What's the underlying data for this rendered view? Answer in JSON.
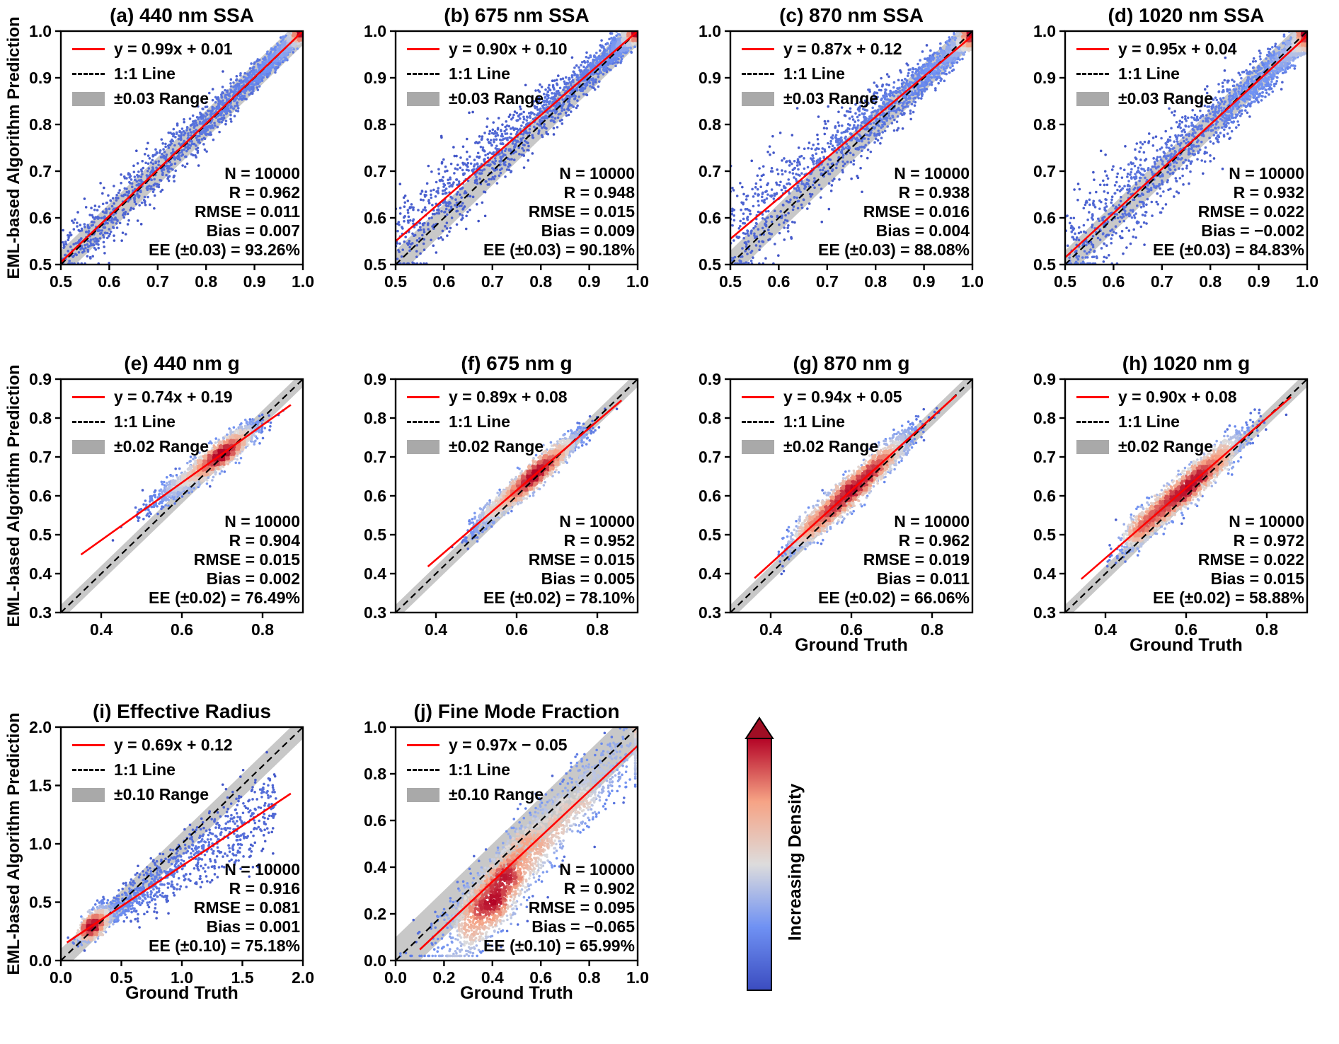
{
  "figure": {
    "y_axis_label": "EML-based Algorithm Prediction",
    "x_axis_label": "Ground Truth",
    "colors": {
      "fit_line": "#ff0000",
      "identity_line": "#000000",
      "band_fill": "#c8c8c8",
      "legend_band_swatch": "#a9a9a9",
      "spine": "#000000",
      "text": "#000000"
    },
    "colorbar": {
      "label": "Increasing Density",
      "colors": [
        "#3b4cc0",
        "#6f91f3",
        "#dddcdc",
        "#f6a385",
        "#b40426"
      ],
      "arrow_color": "#a00e24"
    }
  },
  "chart_data": {
    "type": "scatter",
    "description": "Density scatter plots of EML-based algorithm predictions versus ground truth for aerosol properties; point color encodes local point density (blue = low, red = high).",
    "panels": [
      {
        "id": "a",
        "title": "(a) 440 nm SSA",
        "legend": {
          "fit_label": "y = 0.99x + 0.01",
          "identity_label": "1:1 Line",
          "band_label": "±0.03 Range"
        },
        "stats": {
          "n": "N = 10000",
          "r": "R = 0.962",
          "rmse": "RMSE = 0.011",
          "bias": "Bias = 0.007",
          "ee": "EE (±0.03) = 93.26%"
        },
        "axis": {
          "xmin": 0.5,
          "xmax": 1.0,
          "ymin": 0.5,
          "ymax": 1.0,
          "xticks": [
            0.5,
            0.6,
            0.7,
            0.8,
            0.9,
            1.0
          ],
          "yticks": [
            0.5,
            0.6,
            0.7,
            0.8,
            0.9,
            1.0
          ],
          "decimals": 1
        },
        "fit": {
          "slope": 0.99,
          "intercept": 0.01,
          "range": [
            0.5,
            1.0
          ]
        },
        "band": 0.03,
        "show_xlabel": false,
        "show_ylabel": true,
        "scatter": {
          "seed": 101,
          "n": 2200,
          "components": [
            {
              "w": 1.0,
              "kind": "pow",
              "base": 1.0,
              "scale": -0.5,
              "p": 2.5
            }
          ],
          "noise": {
            "n0": 0.008,
            "n1": 0.07,
            "ref": 1.0
          },
          "clip_x": [
            0.5,
            1.0
          ],
          "clip_y": [
            0.502,
            0.999
          ]
        }
      },
      {
        "id": "b",
        "title": "(b) 675 nm SSA",
        "legend": {
          "fit_label": "y = 0.90x + 0.10",
          "identity_label": "1:1 Line",
          "band_label": "±0.03 Range"
        },
        "stats": {
          "n": "N = 10000",
          "r": "R = 0.948",
          "rmse": "RMSE = 0.015",
          "bias": "Bias = 0.009",
          "ee": "EE (±0.03) = 90.18%"
        },
        "axis": {
          "xmin": 0.5,
          "xmax": 1.0,
          "ymin": 0.5,
          "ymax": 1.0,
          "xticks": [
            0.5,
            0.6,
            0.7,
            0.8,
            0.9,
            1.0
          ],
          "yticks": [
            0.5,
            0.6,
            0.7,
            0.8,
            0.9,
            1.0
          ],
          "decimals": 1
        },
        "fit": {
          "slope": 0.9,
          "intercept": 0.1,
          "range": [
            0.5,
            1.0
          ]
        },
        "band": 0.03,
        "show_xlabel": false,
        "show_ylabel": false,
        "scatter": {
          "seed": 202,
          "n": 2200,
          "components": [
            {
              "w": 1.0,
              "kind": "pow",
              "base": 1.0,
              "scale": -0.5,
              "p": 2.5
            }
          ],
          "noise": {
            "n0": 0.01,
            "n1": 0.09,
            "ref": 1.0
          },
          "clip_x": [
            0.5,
            1.0
          ],
          "clip_y": [
            0.502,
            0.999
          ]
        }
      },
      {
        "id": "c",
        "title": "(c) 870 nm SSA",
        "legend": {
          "fit_label": "y = 0.87x + 0.12",
          "identity_label": "1:1 Line",
          "band_label": "±0.03 Range"
        },
        "stats": {
          "n": "N = 10000",
          "r": "R = 0.938",
          "rmse": "RMSE = 0.016",
          "bias": "Bias = 0.004",
          "ee": "EE (±0.03) = 88.08%"
        },
        "axis": {
          "xmin": 0.5,
          "xmax": 1.0,
          "ymin": 0.5,
          "ymax": 1.0,
          "xticks": [
            0.5,
            0.6,
            0.7,
            0.8,
            0.9,
            1.0
          ],
          "yticks": [
            0.5,
            0.6,
            0.7,
            0.8,
            0.9,
            1.0
          ],
          "decimals": 1
        },
        "fit": {
          "slope": 0.87,
          "intercept": 0.12,
          "range": [
            0.5,
            1.0
          ]
        },
        "band": 0.03,
        "show_xlabel": false,
        "show_ylabel": false,
        "scatter": {
          "seed": 303,
          "n": 2200,
          "components": [
            {
              "w": 1.0,
              "kind": "pow",
              "base": 1.0,
              "scale": -0.5,
              "p": 2.4
            }
          ],
          "noise": {
            "n0": 0.011,
            "n1": 0.1,
            "ref": 1.0
          },
          "clip_x": [
            0.5,
            1.0
          ],
          "clip_y": [
            0.502,
            0.999
          ]
        }
      },
      {
        "id": "d",
        "title": "(d) 1020 nm SSA",
        "legend": {
          "fit_label": "y = 0.95x + 0.04",
          "identity_label": "1:1 Line",
          "band_label": "±0.03 Range"
        },
        "stats": {
          "n": "N = 10000",
          "r": "R = 0.932",
          "rmse": "RMSE = 0.022",
          "bias": "Bias = −0.002",
          "ee": "EE (±0.03) = 84.83%"
        },
        "axis": {
          "xmin": 0.5,
          "xmax": 1.0,
          "ymin": 0.5,
          "ymax": 1.0,
          "xticks": [
            0.5,
            0.6,
            0.7,
            0.8,
            0.9,
            1.0
          ],
          "yticks": [
            0.5,
            0.6,
            0.7,
            0.8,
            0.9,
            1.0
          ],
          "decimals": 1
        },
        "fit": {
          "slope": 0.95,
          "intercept": 0.04,
          "range": [
            0.5,
            1.0
          ]
        },
        "band": 0.03,
        "show_xlabel": false,
        "show_ylabel": false,
        "scatter": {
          "seed": 404,
          "n": 2200,
          "components": [
            {
              "w": 1.0,
              "kind": "pow",
              "base": 1.0,
              "scale": -0.5,
              "p": 2.2
            }
          ],
          "noise": {
            "n0": 0.014,
            "n1": 0.1,
            "ref": 1.0
          },
          "clip_x": [
            0.5,
            1.0
          ],
          "clip_y": [
            0.502,
            0.999
          ]
        }
      },
      {
        "id": "e",
        "title": "(e) 440 nm g",
        "legend": {
          "fit_label": "y = 0.74x + 0.19",
          "identity_label": "1:1 Line",
          "band_label": "±0.02 Range"
        },
        "stats": {
          "n": "N = 10000",
          "r": "R = 0.904",
          "rmse": "RMSE = 0.015",
          "bias": "Bias = 0.002",
          "ee": "EE (±0.02) = 76.49%"
        },
        "axis": {
          "xmin": 0.3,
          "xmax": 0.9,
          "ymin": 0.3,
          "ymax": 0.9,
          "xticks": [
            0.4,
            0.6,
            0.8
          ],
          "yticks": [
            0.3,
            0.4,
            0.5,
            0.6,
            0.7,
            0.8,
            0.9
          ],
          "decimals": 1
        },
        "fit": {
          "slope": 0.74,
          "intercept": 0.19,
          "range": [
            0.35,
            0.87
          ]
        },
        "band": 0.02,
        "show_xlabel": false,
        "show_ylabel": true,
        "scatter": {
          "seed": 505,
          "n": 2500,
          "components": [
            {
              "w": 0.78,
              "kind": "gauss",
              "mean": 0.7,
              "sd": 0.042
            },
            {
              "w": 0.22,
              "kind": "gauss",
              "mean": 0.615,
              "sd": 0.055
            }
          ],
          "noise": {
            "n0": 0.016,
            "n1": 0.0,
            "ref": 0.0
          },
          "clip_x": [
            0.42,
            0.875
          ],
          "clip_y": [
            0.31,
            0.89
          ]
        }
      },
      {
        "id": "f",
        "title": "(f) 675 nm g",
        "legend": {
          "fit_label": "y = 0.89x + 0.08",
          "identity_label": "1:1 Line",
          "band_label": "±0.02 Range"
        },
        "stats": {
          "n": "N = 10000",
          "r": "R = 0.952",
          "rmse": "RMSE = 0.015",
          "bias": "Bias = 0.005",
          "ee": "EE (±0.02) = 78.10%"
        },
        "axis": {
          "xmin": 0.3,
          "xmax": 0.9,
          "ymin": 0.3,
          "ymax": 0.9,
          "xticks": [
            0.4,
            0.6,
            0.8
          ],
          "yticks": [
            0.3,
            0.4,
            0.5,
            0.6,
            0.7,
            0.8,
            0.9
          ],
          "decimals": 1
        },
        "fit": {
          "slope": 0.89,
          "intercept": 0.08,
          "range": [
            0.38,
            0.86
          ]
        },
        "band": 0.02,
        "show_xlabel": false,
        "show_ylabel": false,
        "scatter": {
          "seed": 606,
          "n": 2500,
          "components": [
            {
              "w": 0.7,
              "kind": "gauss",
              "mean": 0.66,
              "sd": 0.048
            },
            {
              "w": 0.3,
              "kind": "gauss",
              "mean": 0.575,
              "sd": 0.05
            }
          ],
          "noise": {
            "n0": 0.016,
            "n1": 0.0,
            "ref": 0.0
          },
          "clip_x": [
            0.44,
            0.875
          ],
          "clip_y": [
            0.31,
            0.89
          ]
        }
      },
      {
        "id": "g",
        "title": "(g) 870 nm g",
        "legend": {
          "fit_label": "y = 0.94x + 0.05",
          "identity_label": "1:1 Line",
          "band_label": "±0.02 Range"
        },
        "stats": {
          "n": "N = 10000",
          "r": "R = 0.962",
          "rmse": "RMSE = 0.019",
          "bias": "Bias = 0.011",
          "ee": "EE (±0.02) = 66.06%"
        },
        "axis": {
          "xmin": 0.3,
          "xmax": 0.9,
          "ymin": 0.3,
          "ymax": 0.9,
          "xticks": [
            0.4,
            0.6,
            0.8
          ],
          "yticks": [
            0.3,
            0.4,
            0.5,
            0.6,
            0.7,
            0.8,
            0.9
          ],
          "decimals": 1
        },
        "fit": {
          "slope": 0.94,
          "intercept": 0.05,
          "range": [
            0.36,
            0.86
          ]
        },
        "band": 0.02,
        "show_xlabel": true,
        "show_ylabel": false,
        "scatter": {
          "seed": 707,
          "n": 2600,
          "components": [
            {
              "w": 0.55,
              "kind": "gauss",
              "mean": 0.64,
              "sd": 0.055
            },
            {
              "w": 0.3,
              "kind": "gauss",
              "mean": 0.56,
              "sd": 0.045
            },
            {
              "w": 0.15,
              "kind": "gauss",
              "mean": 0.495,
              "sd": 0.028
            }
          ],
          "noise": {
            "n0": 0.02,
            "n1": 0.0,
            "ref": 0.0
          },
          "clip_x": [
            0.42,
            0.875
          ],
          "clip_y": [
            0.31,
            0.89
          ]
        }
      },
      {
        "id": "h",
        "title": "(h) 1020 nm g",
        "legend": {
          "fit_label": "y = 0.90x + 0.08",
          "identity_label": "1:1 Line",
          "band_label": "±0.02 Range"
        },
        "stats": {
          "n": "N = 10000",
          "r": "R = 0.972",
          "rmse": "RMSE = 0.022",
          "bias": "Bias = 0.015",
          "ee": "EE (±0.02) = 58.88%"
        },
        "axis": {
          "xmin": 0.3,
          "xmax": 0.9,
          "ymin": 0.3,
          "ymax": 0.9,
          "xticks": [
            0.4,
            0.6,
            0.8
          ],
          "yticks": [
            0.3,
            0.4,
            0.5,
            0.6,
            0.7,
            0.8,
            0.9
          ],
          "decimals": 1
        },
        "fit": {
          "slope": 0.9,
          "intercept": 0.08,
          "range": [
            0.34,
            0.86
          ]
        },
        "band": 0.02,
        "show_xlabel": true,
        "show_ylabel": false,
        "scatter": {
          "seed": 808,
          "n": 2600,
          "components": [
            {
              "w": 0.55,
              "kind": "gauss",
              "mean": 0.635,
              "sd": 0.055
            },
            {
              "w": 0.3,
              "kind": "gauss",
              "mean": 0.555,
              "sd": 0.048
            },
            {
              "w": 0.15,
              "kind": "gauss",
              "mean": 0.49,
              "sd": 0.03
            }
          ],
          "noise": {
            "n0": 0.022,
            "n1": 0.0,
            "ref": 0.0
          },
          "clip_x": [
            0.4,
            0.875
          ],
          "clip_y": [
            0.31,
            0.89
          ]
        }
      },
      {
        "id": "i",
        "title": "(i) Effective Radius",
        "legend": {
          "fit_label": "y = 0.69x + 0.12",
          "identity_label": "1:1 Line",
          "band_label": "±0.10 Range"
        },
        "stats": {
          "n": "N = 10000",
          "r": "R = 0.916",
          "rmse": "RMSE = 0.081",
          "bias": "Bias = 0.001",
          "ee": "EE (±0.10) = 75.18%"
        },
        "axis": {
          "xmin": 0.0,
          "xmax": 2.0,
          "ymin": 0.0,
          "ymax": 2.0,
          "xticks": [
            0.0,
            0.5,
            1.0,
            1.5,
            2.0
          ],
          "yticks": [
            0.0,
            0.5,
            1.0,
            1.5,
            2.0
          ],
          "decimals": 1
        },
        "fit": {
          "slope": 0.69,
          "intercept": 0.12,
          "range": [
            0.05,
            1.9
          ]
        },
        "band": 0.1,
        "show_xlabel": true,
        "show_ylabel": true,
        "scatter": {
          "seed": 909,
          "n": 2500,
          "components": [
            {
              "w": 0.52,
              "kind": "gauss",
              "mean": 0.27,
              "sd": 0.055
            },
            {
              "w": 0.48,
              "kind": "pow",
              "base": 0.18,
              "scale": 1.6,
              "p": 1.7
            }
          ],
          "noise": {
            "n0": 0.02,
            "n1": 0.11,
            "ref": 0.0
          },
          "clip_x": [
            0.04,
            1.95
          ],
          "clip_y": [
            0.02,
            1.98
          ]
        }
      },
      {
        "id": "j",
        "title": "(j) Fine Mode Fraction",
        "legend": {
          "fit_label": "y = 0.97x − 0.05",
          "identity_label": "1:1 Line",
          "band_label": "±0.10 Range"
        },
        "stats": {
          "n": "N = 10000",
          "r": "R = 0.902",
          "rmse": "RMSE = 0.095",
          "bias": "Bias = −0.065",
          "ee": "EE (±0.10) = 65.99%"
        },
        "axis": {
          "xmin": 0.0,
          "xmax": 1.0,
          "ymin": 0.0,
          "ymax": 1.0,
          "xticks": [
            0.0,
            0.2,
            0.4,
            0.6,
            0.8,
            1.0
          ],
          "yticks": [
            0.0,
            0.2,
            0.4,
            0.6,
            0.8,
            1.0
          ],
          "decimals": 1
        },
        "fit": {
          "slope": 0.97,
          "intercept": -0.05,
          "range": [
            0.1,
            1.0
          ]
        },
        "band": 0.1,
        "show_xlabel": true,
        "show_ylabel": false,
        "scatter": {
          "seed": 1010,
          "n": 2600,
          "components": [
            {
              "w": 0.48,
              "kind": "gauss",
              "mean": 0.4,
              "sd": 0.085,
              "yoff": -0.08
            },
            {
              "w": 0.52,
              "kind": "gauss",
              "mean": 0.62,
              "sd": 0.21
            }
          ],
          "noise": {
            "n0": 0.075,
            "n1": 0.0,
            "ref": 0.0
          },
          "clip_x": [
            0.02,
            0.99
          ],
          "clip_y": [
            0.02,
            0.995
          ]
        }
      }
    ]
  }
}
